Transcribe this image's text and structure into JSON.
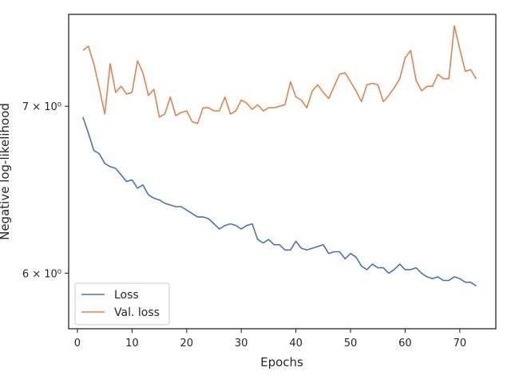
{
  "chart_data": {
    "type": "line",
    "xlabel": "Epochs",
    "ylabel": "Negative log-likelihood",
    "yscale": "log",
    "grid": false,
    "legend_placement": "lower-left",
    "xlim": [
      -1.6,
      76.6
    ],
    "ylim": [
      5.7,
      7.62
    ],
    "x_ticks": [
      0,
      10,
      20,
      30,
      40,
      50,
      60,
      70
    ],
    "y_ticks": [
      {
        "value": 6,
        "label": "6 × 10⁰"
      },
      {
        "value": 7,
        "label": "7 × 10⁰"
      }
    ],
    "x": [
      1,
      2,
      3,
      4,
      5,
      6,
      7,
      8,
      9,
      10,
      11,
      12,
      13,
      14,
      15,
      16,
      17,
      18,
      19,
      20,
      21,
      22,
      23,
      24,
      25,
      26,
      27,
      28,
      29,
      30,
      31,
      32,
      33,
      34,
      35,
      36,
      37,
      38,
      39,
      40,
      41,
      42,
      43,
      44,
      45,
      46,
      47,
      48,
      49,
      50,
      51,
      52,
      53,
      54,
      55,
      56,
      57,
      58,
      59,
      60,
      61,
      62,
      63,
      64,
      65,
      66,
      67,
      68,
      69,
      70,
      71,
      72,
      73
    ],
    "series": [
      {
        "name": "Loss",
        "color": "#4c72b0",
        "values": [
          6.93,
          6.83,
          6.72,
          6.7,
          6.64,
          6.62,
          6.61,
          6.57,
          6.53,
          6.54,
          6.49,
          6.51,
          6.45,
          6.43,
          6.42,
          6.4,
          6.39,
          6.38,
          6.38,
          6.36,
          6.34,
          6.32,
          6.32,
          6.31,
          6.28,
          6.25,
          6.27,
          6.28,
          6.27,
          6.25,
          6.27,
          6.28,
          6.19,
          6.17,
          6.19,
          6.16,
          6.16,
          6.13,
          6.13,
          6.18,
          6.14,
          6.13,
          6.14,
          6.15,
          6.16,
          6.11,
          6.12,
          6.12,
          6.08,
          6.11,
          6.09,
          6.04,
          6.02,
          6.05,
          6.03,
          6.03,
          6.0,
          6.02,
          6.05,
          6.02,
          6.02,
          6.03,
          6.0,
          5.98,
          5.97,
          5.98,
          5.96,
          5.96,
          5.98,
          5.97,
          5.95,
          5.95,
          5.93
        ]
      },
      {
        "name": "Val. loss",
        "color": "#dd8452",
        "values": [
          7.37,
          7.4,
          7.28,
          7.12,
          6.95,
          7.28,
          7.09,
          7.13,
          7.08,
          7.09,
          7.3,
          7.22,
          7.07,
          7.11,
          6.93,
          6.95,
          7.06,
          6.94,
          6.96,
          6.97,
          6.9,
          6.89,
          6.99,
          6.99,
          6.97,
          6.97,
          7.06,
          6.95,
          6.97,
          7.04,
          7.02,
          6.98,
          7.01,
          6.97,
          6.99,
          6.99,
          7.0,
          7.01,
          7.16,
          7.06,
          7.04,
          6.99,
          7.1,
          7.14,
          7.09,
          7.05,
          7.13,
          7.21,
          7.22,
          7.16,
          7.1,
          7.03,
          7.14,
          7.15,
          7.14,
          7.03,
          7.07,
          7.12,
          7.18,
          7.32,
          7.37,
          7.17,
          7.1,
          7.13,
          7.13,
          7.21,
          7.18,
          7.18,
          7.54,
          7.38,
          7.23,
          7.24,
          7.18
        ]
      }
    ]
  }
}
